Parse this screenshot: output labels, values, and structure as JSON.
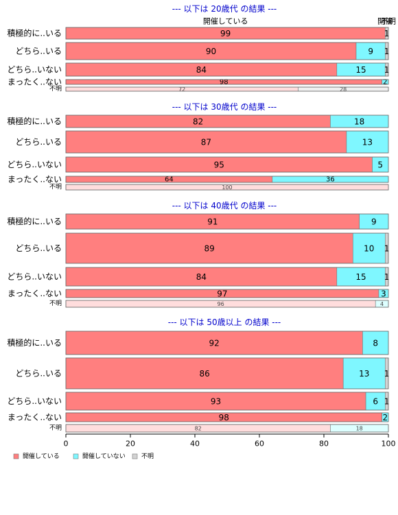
{
  "colors": {
    "yes": "#ff7f7f",
    "no": "#7ff7ff",
    "unknown": "#d3d3d3",
    "yes_light": "#ffdddd",
    "no_light": "#ddffff",
    "unknown_light": "#f0f0f0",
    "title": "#0000cc"
  },
  "top_column_labels": [
    "開催している",
    "開催",
    "不明"
  ],
  "legend": {
    "items": [
      {
        "key": "yes",
        "label": "開催している"
      },
      {
        "key": "no",
        "label": "開催していない"
      },
      {
        "key": "unknown",
        "label": "不明"
      }
    ]
  },
  "chart_data": {
    "type": "bar",
    "orientation": "horizontal",
    "stacked": true,
    "xlim": [
      0,
      100
    ],
    "x_ticks": [
      "0",
      "20",
      "40",
      "60",
      "80",
      "100"
    ],
    "grid": false,
    "legend_position": "bottom-left",
    "series_names": [
      "開催している",
      "開催していない",
      "不明"
    ],
    "panels": [
      {
        "title": "--- 以下は 20歳代 の結果 ---",
        "rows": [
          {
            "label": "積極的に..いる",
            "values": [
              99,
              0,
              1
            ]
          },
          {
            "label": "どちら..いる",
            "values": [
              90,
              9,
              1
            ]
          },
          {
            "label": "どちら..いない",
            "values": [
              84,
              15,
              1
            ]
          },
          {
            "label": "まったく..ない",
            "values": [
              98,
              2,
              0
            ]
          },
          {
            "label": "不明",
            "values": [
              72,
              0,
              28
            ]
          }
        ]
      },
      {
        "title": "--- 以下は 30歳代 の結果 ---",
        "rows": [
          {
            "label": "積極的に..いる",
            "values": [
              82,
              18,
              0
            ]
          },
          {
            "label": "どちら..いる",
            "values": [
              87,
              13,
              0
            ]
          },
          {
            "label": "どちら..いない",
            "values": [
              95,
              5,
              0
            ]
          },
          {
            "label": "まったく..ない",
            "values": [
              64,
              36,
              0
            ]
          },
          {
            "label": "不明",
            "values": [
              100,
              0,
              0
            ]
          }
        ]
      },
      {
        "title": "--- 以下は 40歳代 の結果 ---",
        "rows": [
          {
            "label": "積極的に..いる",
            "values": [
              91,
              9,
              0
            ]
          },
          {
            "label": "どちら..いる",
            "values": [
              89,
              10,
              1
            ]
          },
          {
            "label": "どちら..いない",
            "values": [
              84,
              15,
              1
            ]
          },
          {
            "label": "まったく..ない",
            "values": [
              97,
              3,
              0
            ]
          },
          {
            "label": "不明",
            "values": [
              96,
              4,
              0
            ]
          }
        ]
      },
      {
        "title": "--- 以下は 50歳以上 の結果 ---",
        "rows": [
          {
            "label": "積極的に..いる",
            "values": [
              92,
              8,
              0
            ]
          },
          {
            "label": "どちら..いる",
            "values": [
              86,
              13,
              1
            ]
          },
          {
            "label": "どちら..いない",
            "values": [
              93,
              6,
              1
            ]
          },
          {
            "label": "まったく..ない",
            "values": [
              98,
              2,
              0
            ]
          },
          {
            "label": "不明",
            "values": [
              82,
              18,
              0
            ]
          }
        ]
      }
    ]
  }
}
